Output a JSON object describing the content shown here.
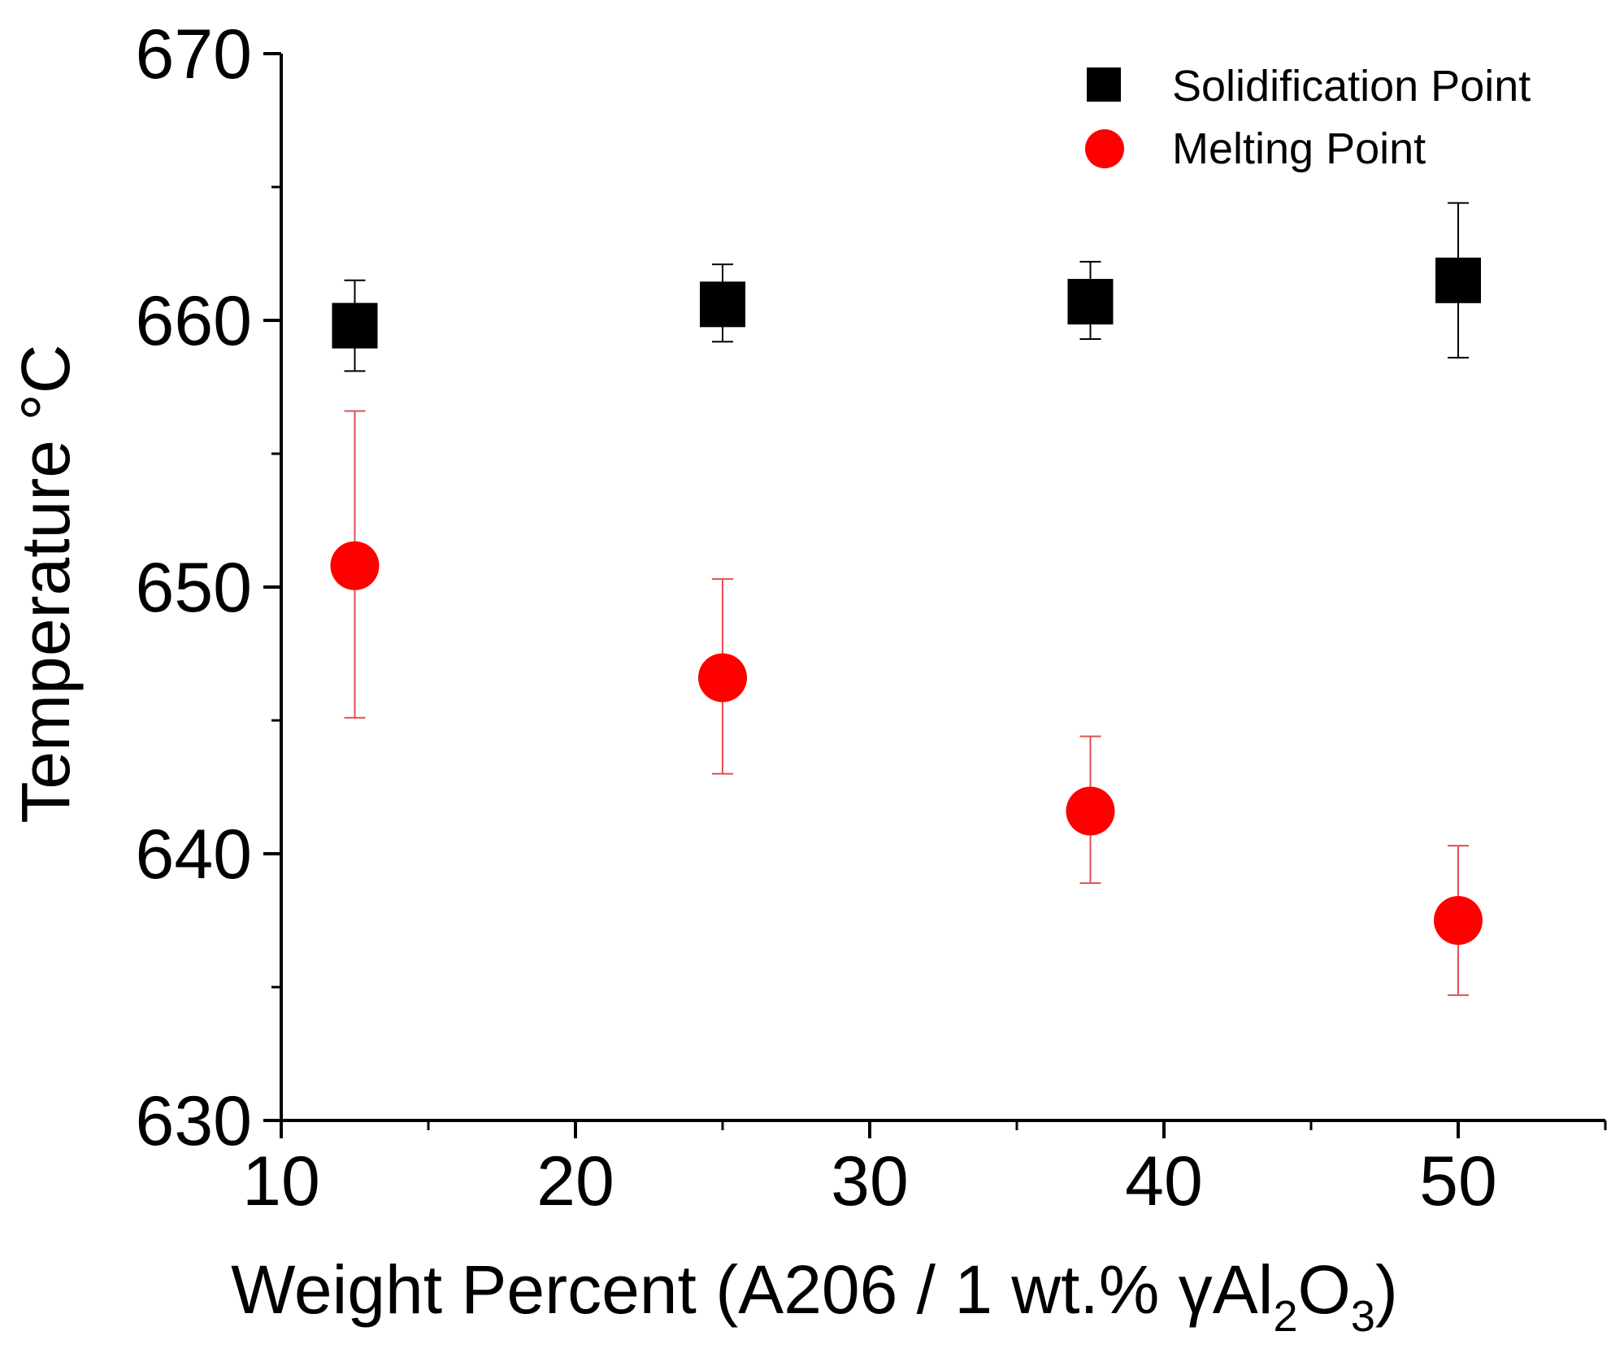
{
  "chart_data": {
    "type": "scatter",
    "title": "",
    "xlabel": {
      "main": "Weight Percent (A206 / 1 wt.% γAl",
      "sub1": "2",
      "mid": "O",
      "sub2": "3",
      "tail": ")"
    },
    "ylabel": "Temperature °C",
    "xlim": [
      10,
      55
    ],
    "ylim": [
      630,
      670
    ],
    "xticks": [
      10,
      20,
      30,
      40,
      50
    ],
    "xtick_labels": [
      "10",
      "20",
      "30",
      "40",
      "50"
    ],
    "xminor": [
      15,
      25,
      35,
      45,
      55
    ],
    "yticks": [
      630,
      640,
      650,
      660,
      670
    ],
    "ytick_labels": [
      "630",
      "640",
      "650",
      "660",
      "670"
    ],
    "yminor": [
      635,
      645,
      655,
      665
    ],
    "grid": false,
    "legend_position": "top-right",
    "series": [
      {
        "name": "Solidification Point",
        "marker": "square",
        "color": "#000000",
        "error_color": "#000000",
        "points": [
          {
            "x": 12.5,
            "y": 659.8,
            "err_low": 658.1,
            "err_high": 661.5
          },
          {
            "x": 25,
            "y": 660.6,
            "err_low": 659.2,
            "err_high": 662.1
          },
          {
            "x": 37.5,
            "y": 660.7,
            "err_low": 659.3,
            "err_high": 662.2
          },
          {
            "x": 50,
            "y": 661.5,
            "err_low": 658.6,
            "err_high": 664.4
          }
        ]
      },
      {
        "name": "Melting Point",
        "marker": "circle",
        "color": "#ff0000",
        "error_color": "#e05050",
        "points": [
          {
            "x": 12.5,
            "y": 650.8,
            "err_low": 645.1,
            "err_high": 656.6
          },
          {
            "x": 25,
            "y": 646.6,
            "err_low": 643.0,
            "err_high": 650.3
          },
          {
            "x": 37.5,
            "y": 641.6,
            "err_low": 638.9,
            "err_high": 644.4
          },
          {
            "x": 50,
            "y": 637.5,
            "err_low": 634.7,
            "err_high": 640.3
          }
        ]
      }
    ]
  }
}
